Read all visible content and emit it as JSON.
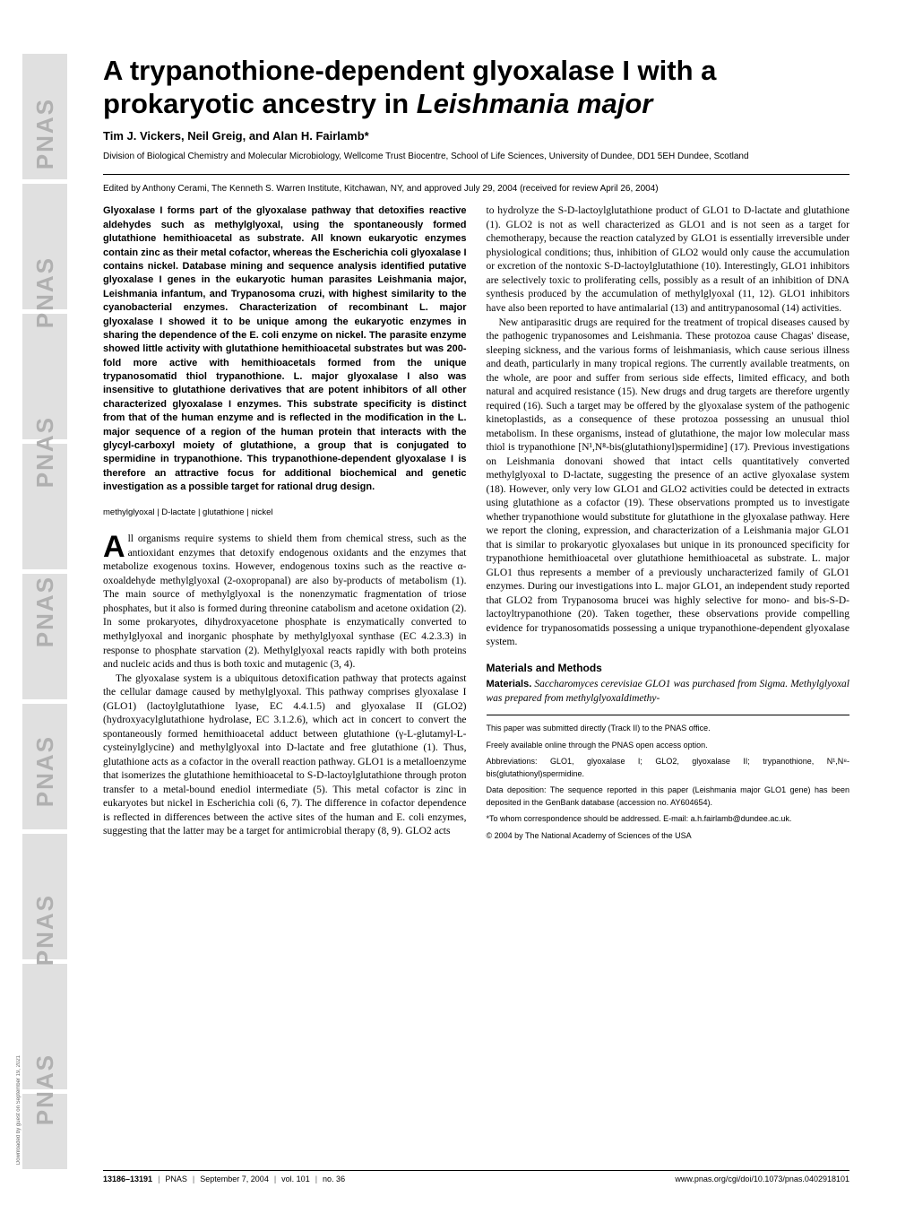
{
  "sidebar": {
    "repeat_text": "PNAS"
  },
  "title": {
    "main": "A trypanothione-dependent glyoxalase I with a prokaryotic ancestry in ",
    "italic": "Leishmania major"
  },
  "authors": "Tim J. Vickers, Neil Greig, and Alan H. Fairlamb*",
  "affiliation": "Division of Biological Chemistry and Molecular Microbiology, Wellcome Trust Biocentre, School of Life Sciences, University of Dundee, DD1 5EH Dundee, Scotland",
  "editor_line": "Edited by Anthony Cerami, The Kenneth S. Warren Institute, Kitchawan, NY, and approved July 29, 2004 (received for review April 26, 2004)",
  "abstract": "Glyoxalase I forms part of the glyoxalase pathway that detoxifies reactive aldehydes such as methylglyoxal, using the spontaneously formed glutathione hemithioacetal as substrate. All known eukaryotic enzymes contain zinc as their metal cofactor, whereas the Escherichia coli glyoxalase I contains nickel. Database mining and sequence analysis identified putative glyoxalase I genes in the eukaryotic human parasites Leishmania major, Leishmania infantum, and Trypanosoma cruzi, with highest similarity to the cyanobacterial enzymes. Characterization of recombinant L. major glyoxalase I showed it to be unique among the eukaryotic enzymes in sharing the dependence of the E. coli enzyme on nickel. The parasite enzyme showed little activity with glutathione hemithioacetal substrates but was 200-fold more active with hemithioacetals formed from the unique trypanosomatid thiol trypanothione. L. major glyoxalase I also was insensitive to glutathione derivatives that are potent inhibitors of all other characterized glyoxalase I enzymes. This substrate specificity is distinct from that of the human enzyme and is reflected in the modification in the L. major sequence of a region of the human protein that interacts with the glycyl-carboxyl moiety of glutathione, a group that is conjugated to spermidine in trypanothione. This trypanothione-dependent glyoxalase I is therefore an attractive focus for additional biochemical and genetic investigation as a possible target for rational drug design.",
  "keywords": "methylglyoxal | D-lactate | glutathione | nickel",
  "left_column": {
    "dropcap": "A",
    "para1": "ll organisms require systems to shield them from chemical stress, such as the antioxidant enzymes that detoxify endogenous oxidants and the enzymes that metabolize exogenous toxins. However, endogenous toxins such as the reactive α-oxoaldehyde methylglyoxal (2-oxopropanal) are also by-products of metabolism (1). The main source of methylglyoxal is the nonenzymatic fragmentation of triose phosphates, but it also is formed during threonine catabolism and acetone oxidation (2). In some prokaryotes, dihydroxyacetone phosphate is enzymatically converted to methylglyoxal and inorganic phosphate by methylglyoxal synthase (EC 4.2.3.3) in response to phosphate starvation (2). Methylglyoxal reacts rapidly with both proteins and nucleic acids and thus is both toxic and mutagenic (3, 4).",
    "para2": "The glyoxalase system is a ubiquitous detoxification pathway that protects against the cellular damage caused by methylglyoxal. This pathway comprises glyoxalase I (GLO1) (lactoylglutathione lyase, EC 4.4.1.5) and glyoxalase II (GLO2) (hydroxyacylglutathione hydrolase, EC 3.1.2.6), which act in concert to convert the spontaneously formed hemithioacetal adduct between glutathione (γ-L-glutamyl-L-cysteinylglycine) and methylglyoxal into D-lactate and free glutathione (1). Thus, glutathione acts as a cofactor in the overall reaction pathway. GLO1 is a metalloenzyme that isomerizes the glutathione hemithioacetal to S-D-lactoylglutathione through proton transfer to a metal-bound enediol intermediate (5). This metal cofactor is zinc in eukaryotes but nickel in Escherichia coli (6, 7). The difference in cofactor dependence is reflected in differences between the active sites of the human and E. coli enzymes, suggesting that the latter may be a target for antimicrobial therapy (8, 9). GLO2 acts"
  },
  "right_column": {
    "para1": "to hydrolyze the S-D-lactoylglutathione product of GLO1 to D-lactate and glutathione (1). GLO2 is not as well characterized as GLO1 and is not seen as a target for chemotherapy, because the reaction catalyzed by GLO1 is essentially irreversible under physiological conditions; thus, inhibition of GLO2 would only cause the accumulation or excretion of the nontoxic S-D-lactoylglutathione (10). Interestingly, GLO1 inhibitors are selectively toxic to proliferating cells, possibly as a result of an inhibition of DNA synthesis produced by the accumulation of methylglyoxal (11, 12). GLO1 inhibitors have also been reported to have antimalarial (13) and antitrypanosomal (14) activities.",
    "para2": "New antiparasitic drugs are required for the treatment of tropical diseases caused by the pathogenic trypanosomes and Leishmania. These protozoa cause Chagas' disease, sleeping sickness, and the various forms of leishmaniasis, which cause serious illness and death, particularly in many tropical regions. The currently available treatments, on the whole, are poor and suffer from serious side effects, limited efficacy, and both natural and acquired resistance (15). New drugs and drug targets are therefore urgently required (16). Such a target may be offered by the glyoxalase system of the pathogenic kinetoplastids, as a consequence of these protozoa possessing an unusual thiol metabolism. In these organisms, instead of glutathione, the major low molecular mass thiol is trypanothione [N¹,N⁸-bis(glutathionyl)spermidine] (17). Previous investigations on Leishmania donovani showed that intact cells quantitatively converted methylglyoxal to D-lactate, suggesting the presence of an active glyoxalase system (18). However, only very low GLO1 and GLO2 activities could be detected in extracts using glutathione as a cofactor (19). These observations prompted us to investigate whether trypanothione would substitute for glutathione in the glyoxalase pathway. Here we report the cloning, expression, and characterization of a Leishmania major GLO1 that is similar to prokaryotic glyoxalases but unique in its pronounced specificity for trypanothione hemithioacetal over glutathione hemithioacetal as substrate. L. major GLO1 thus represents a member of a previously uncharacterized family of GLO1 enzymes. During our investigations into L. major GLO1, an independent study reported that GLO2 from Trypanosoma brucei was highly selective for mono- and bis-S-D-lactoyltrypanothione (20). Taken together, these observations provide compelling evidence for trypanosomatids possessing a unique trypanothione-dependent glyoxalase system.",
    "methods_heading": "Materials and Methods",
    "materials_label": "Materials.",
    "materials_text": " Saccharomyces cerevisiae GLO1 was purchased from Sigma. Methylglyoxal was prepared from methylglyoxaldimethy-"
  },
  "footnotes": {
    "n1": "This paper was submitted directly (Track II) to the PNAS office.",
    "n2": "Freely available online through the PNAS open access option.",
    "n3": "Abbreviations: GLO1, glyoxalase I; GLO2, glyoxalase II; trypanothione, N¹,N⁸-bis(glutathionyl)spermidine.",
    "n4": "Data deposition: The sequence reported in this paper (Leishmania major GLO1 gene) has been deposited in the GenBank database (accession no. AY604654).",
    "n5": "*To whom correspondence should be addressed. E-mail: a.h.fairlamb@dundee.ac.uk.",
    "n6": "© 2004 by The National Academy of Sciences of the USA"
  },
  "footer": {
    "pages": "13186–13191",
    "journal": "PNAS",
    "date": "September 7, 2004",
    "vol": "vol. 101",
    "issue": "no. 36",
    "url": "www.pnas.org/cgi/doi/10.1073/pnas.0402918101"
  },
  "download_note": "Downloaded by guest on September 19, 2021",
  "colors": {
    "text": "#000000",
    "bg": "#ffffff",
    "stripe": "#b0b0b0"
  }
}
